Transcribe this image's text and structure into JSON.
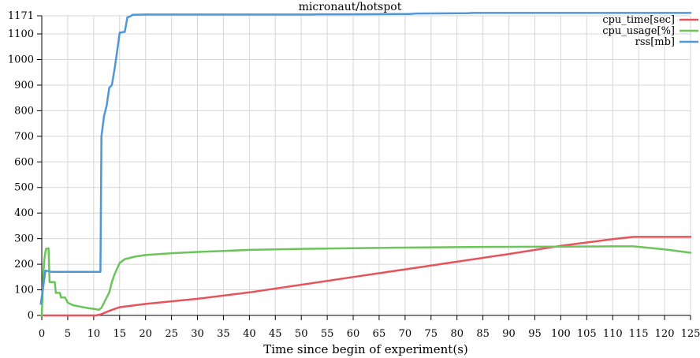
{
  "chart_data": {
    "type": "line",
    "title": "micronaut/hotspot",
    "xlabel": "Time since begin of experiment(s)",
    "ylabel": "",
    "xlim": [
      0,
      125
    ],
    "ylim": [
      0,
      1171
    ],
    "x_ticks": [
      0,
      5,
      10,
      15,
      20,
      25,
      30,
      35,
      40,
      45,
      50,
      55,
      60,
      65,
      70,
      75,
      80,
      85,
      90,
      95,
      100,
      105,
      110,
      115,
      120,
      125
    ],
    "y_ticks": [
      0,
      100,
      200,
      300,
      400,
      500,
      600,
      700,
      800,
      900,
      1000,
      1100,
      1171
    ],
    "grid": true,
    "legend_position": "top-right",
    "series": [
      {
        "name": "cpu_time[sec]",
        "color": "#e8535b",
        "points": [
          [
            0.2,
            0
          ],
          [
            1,
            0
          ],
          [
            5,
            0
          ],
          [
            9,
            0
          ],
          [
            10.5,
            0
          ],
          [
            11.5,
            5
          ],
          [
            13,
            18
          ],
          [
            15,
            32
          ],
          [
            20,
            45
          ],
          [
            30,
            65
          ],
          [
            40,
            90
          ],
          [
            50,
            120
          ],
          [
            60,
            150
          ],
          [
            70,
            180
          ],
          [
            80,
            210
          ],
          [
            90,
            240
          ],
          [
            100,
            272
          ],
          [
            110,
            298
          ],
          [
            114,
            307
          ],
          [
            120,
            307
          ],
          [
            125,
            307
          ]
        ]
      },
      {
        "name": "cpu_usage[%]",
        "color": "#6cc45a",
        "points": [
          [
            0,
            0
          ],
          [
            0.3,
            165
          ],
          [
            0.5,
            220
          ],
          [
            0.8,
            260
          ],
          [
            1.3,
            262
          ],
          [
            1.5,
            130
          ],
          [
            2.5,
            130
          ],
          [
            2.7,
            88
          ],
          [
            3.5,
            88
          ],
          [
            3.7,
            70
          ],
          [
            4.5,
            70
          ],
          [
            5,
            50
          ],
          [
            6,
            40
          ],
          [
            7,
            36
          ],
          [
            8,
            32
          ],
          [
            9,
            28
          ],
          [
            10,
            26
          ],
          [
            11,
            22
          ],
          [
            11.5,
            30
          ],
          [
            12,
            50
          ],
          [
            13,
            90
          ],
          [
            13.5,
            130
          ],
          [
            14,
            160
          ],
          [
            15,
            205
          ],
          [
            16,
            220
          ],
          [
            17,
            225
          ],
          [
            18,
            230
          ],
          [
            20,
            236
          ],
          [
            25,
            243
          ],
          [
            30,
            248
          ],
          [
            35,
            252
          ],
          [
            40,
            256
          ],
          [
            50,
            260
          ],
          [
            60,
            263
          ],
          [
            70,
            265
          ],
          [
            80,
            267
          ],
          [
            90,
            268
          ],
          [
            100,
            269
          ],
          [
            110,
            270
          ],
          [
            114,
            270
          ],
          [
            120,
            258
          ],
          [
            125,
            245
          ]
        ]
      },
      {
        "name": "rss[mb]",
        "color": "#4f97d6",
        "points": [
          [
            -0.2,
            45
          ],
          [
            0.2,
            100
          ],
          [
            0.7,
            175
          ],
          [
            2,
            170
          ],
          [
            5,
            170
          ],
          [
            8,
            170
          ],
          [
            11.3,
            170
          ],
          [
            11.5,
            700
          ],
          [
            12,
            780
          ],
          [
            12.5,
            820
          ],
          [
            13,
            890
          ],
          [
            13.5,
            900
          ],
          [
            14,
            960
          ],
          [
            14.5,
            1030
          ],
          [
            15,
            1105
          ],
          [
            16,
            1108
          ],
          [
            16.5,
            1165
          ],
          [
            17,
            1168
          ],
          [
            17.5,
            1175
          ],
          [
            20,
            1176
          ],
          [
            30,
            1176
          ],
          [
            40,
            1176
          ],
          [
            52,
            1176
          ],
          [
            53,
            1177
          ],
          [
            60,
            1177
          ],
          [
            71,
            1178
          ],
          [
            72,
            1180
          ],
          [
            82,
            1181
          ],
          [
            83,
            1182
          ],
          [
            90,
            1182
          ],
          [
            100,
            1182
          ],
          [
            110,
            1182
          ],
          [
            120,
            1182
          ],
          [
            125,
            1182
          ]
        ]
      }
    ]
  }
}
